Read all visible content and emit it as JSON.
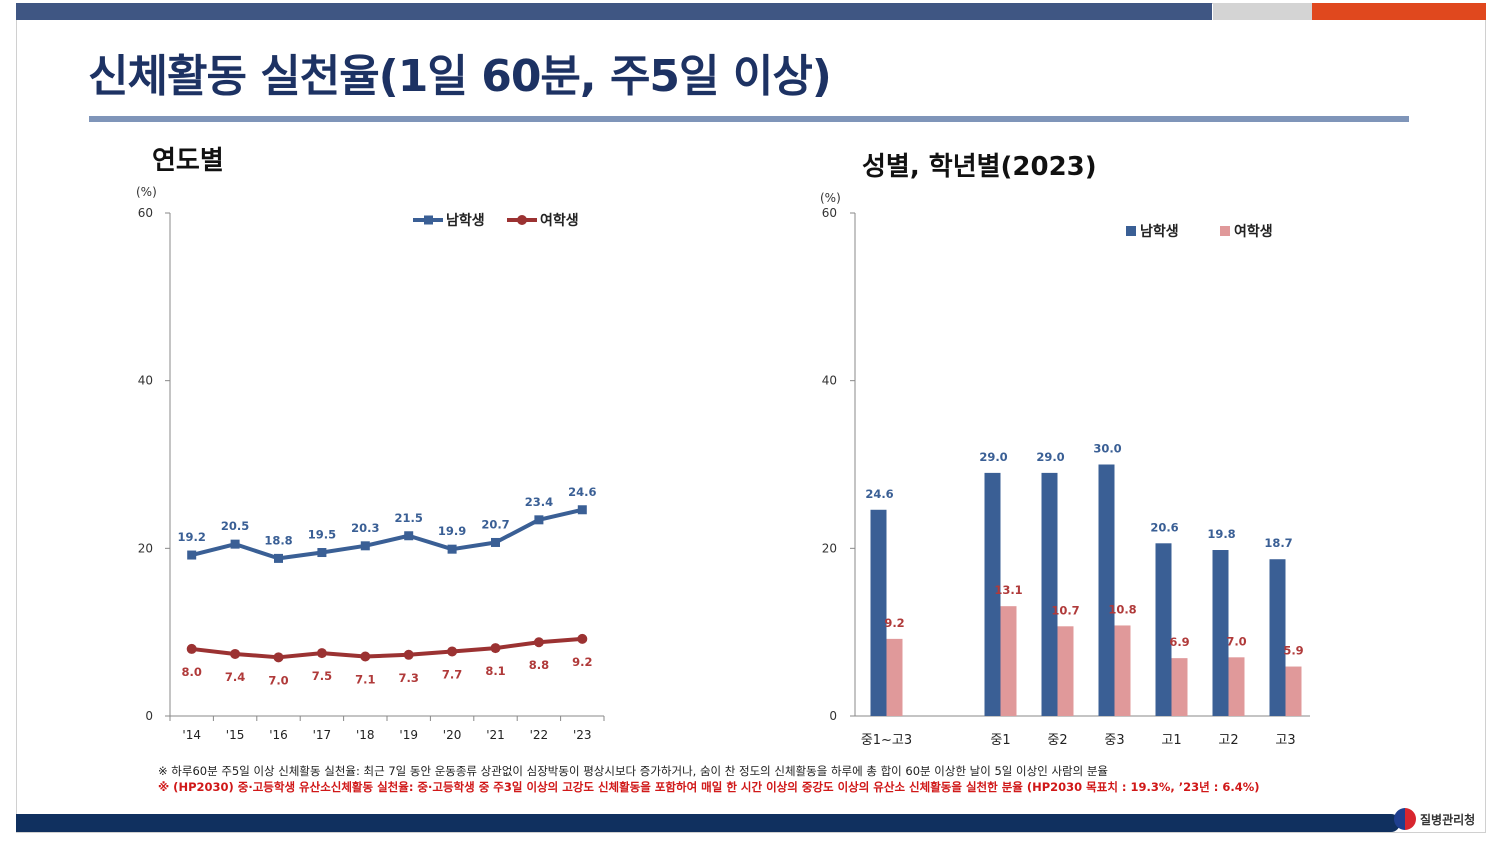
{
  "title": "신체활동 실천율(1일 60분, 주5일 이상)",
  "colors": {
    "male": "#3a5f95",
    "female_line": "#9b3232",
    "female_bar": "#e0999a",
    "female_label": "#b03a3a"
  },
  "left_panel": {
    "subtitle": "연도별",
    "unit": "(%)"
  },
  "right_panel": {
    "subtitle": "성별, 학년별(2023)",
    "unit": "(%)"
  },
  "chart_data": [
    {
      "type": "line",
      "x": [
        "'14",
        "'15",
        "'16",
        "'17",
        "'18",
        "'19",
        "'20",
        "'21",
        "'22",
        "'23"
      ],
      "ylim": [
        0,
        60
      ],
      "yticks": [
        "0",
        "20",
        "40",
        "60"
      ],
      "legend_position": "top-center",
      "series": [
        {
          "name": "남학생",
          "values": [
            19.2,
            20.5,
            18.8,
            19.5,
            20.3,
            21.5,
            19.9,
            20.7,
            23.4,
            24.6
          ],
          "labels": [
            "19.2",
            "20.5",
            "18.8",
            "19.5",
            "20.3",
            "21.5",
            "19.9",
            "20.7",
            "23.4",
            "24.6"
          ]
        },
        {
          "name": "여학생",
          "values": [
            8.0,
            7.4,
            7.0,
            7.5,
            7.1,
            7.3,
            7.7,
            8.1,
            8.8,
            9.2
          ],
          "labels": [
            "8.0",
            "7.4",
            "7.0",
            "7.5",
            "7.1",
            "7.3",
            "7.7",
            "8.1",
            "8.8",
            "9.2"
          ]
        }
      ]
    },
    {
      "type": "bar",
      "categories": [
        "중1~고3",
        "중1",
        "중2",
        "중3",
        "고1",
        "고2",
        "고3"
      ],
      "ylim": [
        0,
        60
      ],
      "yticks": [
        "0",
        "20",
        "40",
        "60"
      ],
      "legend_position": "top-right",
      "series": [
        {
          "name": "남학생",
          "values": [
            24.6,
            29.0,
            29.0,
            30.0,
            20.6,
            19.8,
            18.7
          ],
          "labels": [
            "24.6",
            "29.0",
            "29.0",
            "30.0",
            "20.6",
            "19.8",
            "18.7"
          ]
        },
        {
          "name": "여학생",
          "values": [
            9.2,
            13.1,
            10.7,
            10.8,
            6.9,
            7.0,
            5.9
          ],
          "labels": [
            "9.2",
            "13.1",
            "10.7",
            "10.8",
            "6.9",
            "7.0",
            "5.9"
          ]
        }
      ]
    }
  ],
  "notes": {
    "line1": "※ 하루60분 주5일 이상 신체활동 실천율: 최근 7일 동안 운동종류 상관없이 심장박동이 평상시보다 증가하거나, 숨이 찬 정도의 신체활동을 하루에 총 합이 60분 이상한 날이 5일 이상인 사람의 분율",
    "line2": "※ (HP2030) 중·고등학생 유산소신체활동 실천율: 중·고등학생 중 주3일 이상의 고강도 신체활동을 포함하여 매일 한 시간 이상의 중강도 이상의  유산소 신체활동을 실천한 분율 (HP2030 목표치 : 19.3%, ’23년 : 6.4%)"
  },
  "footer": {
    "org": "질병관리청"
  }
}
